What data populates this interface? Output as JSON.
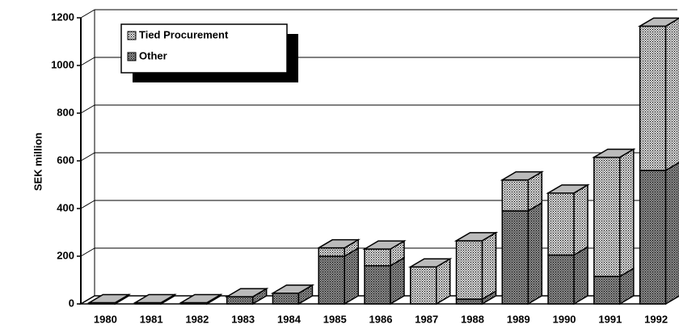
{
  "chart_data": {
    "type": "bar3d_stacked",
    "y_axis_label": "SEK million",
    "categories": [
      "1980",
      "1981",
      "1982",
      "1983",
      "1984",
      "1985",
      "1986",
      "1987",
      "1988",
      "1989",
      "1990",
      "1991",
      "1992"
    ],
    "series": [
      {
        "name": "Other",
        "color": "#8a8a8a",
        "values": [
          5,
          5,
          5,
          30,
          45,
          200,
          160,
          0,
          20,
          390,
          205,
          115,
          560
        ]
      },
      {
        "name": "Tied Procurement",
        "color": "#d8d8d8",
        "values": [
          0,
          0,
          0,
          0,
          0,
          35,
          70,
          155,
          245,
          130,
          260,
          500,
          605
        ]
      }
    ],
    "ylim": [
      0,
      1200
    ],
    "yticks": [
      0,
      200,
      400,
      600,
      800,
      1000,
      1200
    ],
    "grid": true
  }
}
